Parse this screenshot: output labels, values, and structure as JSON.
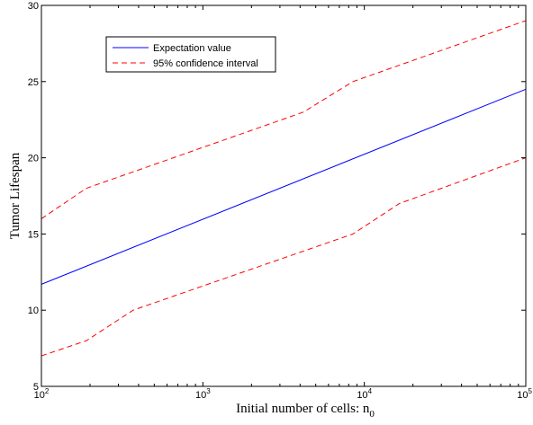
{
  "chart_data": {
    "type": "line",
    "title": "",
    "xlabel": "Initial number of cells: n",
    "xlabel_subscript": "0",
    "ylabel": "Tumor Lifespan",
    "xscale": "log",
    "xlim": [
      100,
      100000
    ],
    "ylim": [
      5,
      30
    ],
    "xticks": [
      {
        "value": 100,
        "base": "10",
        "exp": "2"
      },
      {
        "value": 1000,
        "base": "10",
        "exp": "3"
      },
      {
        "value": 10000,
        "base": "10",
        "exp": "4"
      },
      {
        "value": 100000,
        "base": "10",
        "exp": "5"
      }
    ],
    "yticks": [
      5,
      10,
      15,
      20,
      25,
      30
    ],
    "grid": false,
    "legend_position": "top-left",
    "series": [
      {
        "name": "Expectation value",
        "color": "#0000ff",
        "style": "solid",
        "x": [
          100,
          100000
        ],
        "y": [
          11.7,
          24.5
        ]
      },
      {
        "name": "95% confidence interval",
        "color": "#ff0000",
        "style": "dashed",
        "x": [
          100,
          190,
          4200,
          8500,
          100000
        ],
        "y": [
          16,
          18,
          23,
          25,
          29
        ]
      },
      {
        "name": "",
        "color": "#ff0000",
        "style": "dashed",
        "x": [
          100,
          190,
          370,
          8500,
          16500,
          100000
        ],
        "y": [
          7,
          8,
          10,
          15,
          17,
          20
        ]
      }
    ]
  }
}
